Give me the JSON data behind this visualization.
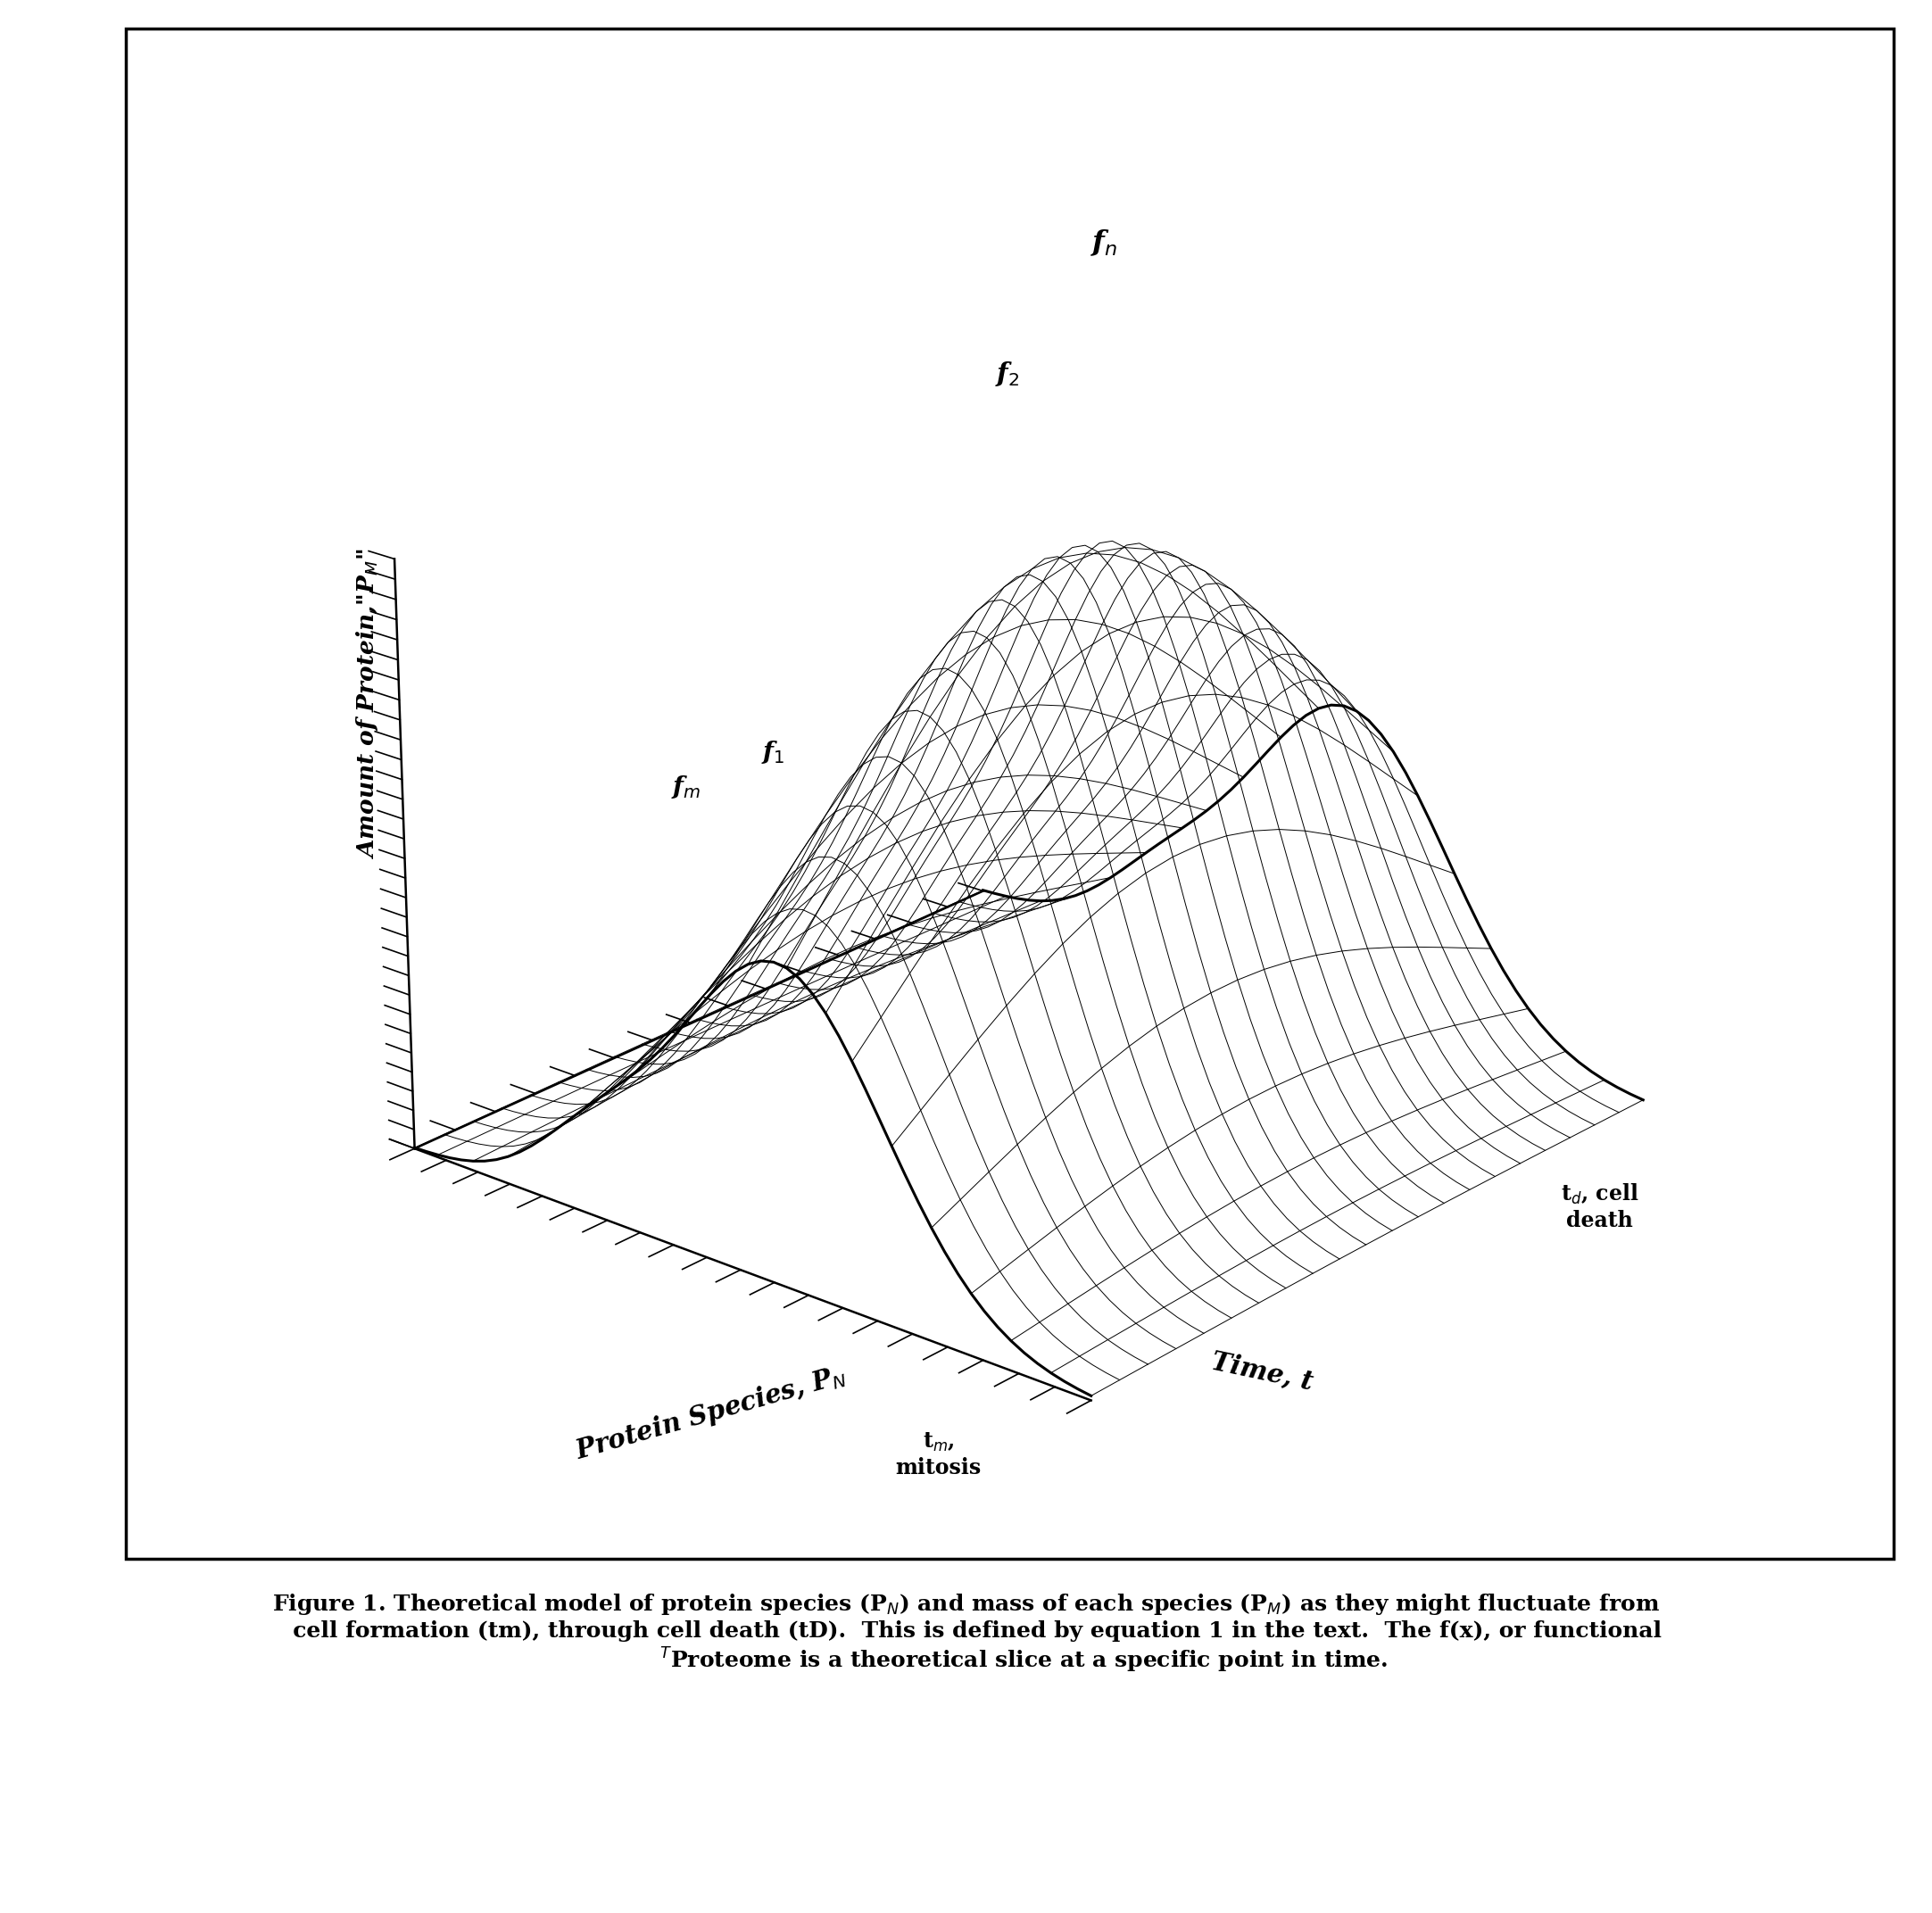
{
  "background_color": "#ffffff",
  "line_color": "#000000",
  "n_species": 22,
  "n_time": 55,
  "elev": 22,
  "azim": -50,
  "label_fn": "f$_n$",
  "label_f2": "f$_2$",
  "label_f1": "f$_1$",
  "label_fm": "f$_m$",
  "label_tm": "t$_m$,\nmitosis",
  "label_td": "t$_d$, cell\ndeath",
  "ylabel": "Amount of Protein,\"P$_M$\"",
  "xlabel": "Protein Species, P$_N$",
  "zlabel": "Time, t",
  "caption_line1": "Figure 1. Theoretical model of protein species (P",
  "caption_line2": ") and mass of each species (P",
  "caption_line3": ") as they might fluctuate from",
  "caption_line4": "   cell formation (tm), through cell death (tD).  This is defined by equation 1 in the text.  The f(x), or functional",
  "caption_line5": "                ᵀProteome is a theoretical slice at a specific point in time."
}
